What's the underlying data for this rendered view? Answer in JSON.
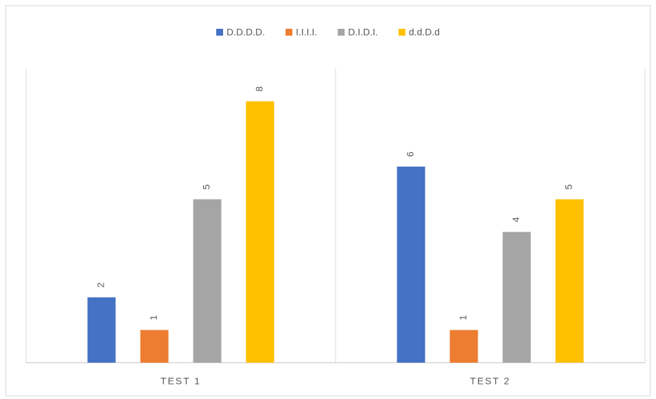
{
  "chart_data": {
    "type": "bar",
    "categories": [
      "TEST 1",
      "TEST 2"
    ],
    "series": [
      {
        "name": "D.D.D.D.",
        "color": "#4472c4",
        "values": [
          2,
          6
        ]
      },
      {
        "name": "I.I.I.I.",
        "color": "#ed7d31",
        "values": [
          1,
          1
        ]
      },
      {
        "name": "D.I.D.I.",
        "color": "#a5a5a5",
        "values": [
          5,
          4
        ]
      },
      {
        "name": "d.d.D.d",
        "color": "#ffc000",
        "values": [
          8,
          5
        ]
      }
    ],
    "ylim": [
      0,
      9
    ],
    "legend": "top"
  }
}
